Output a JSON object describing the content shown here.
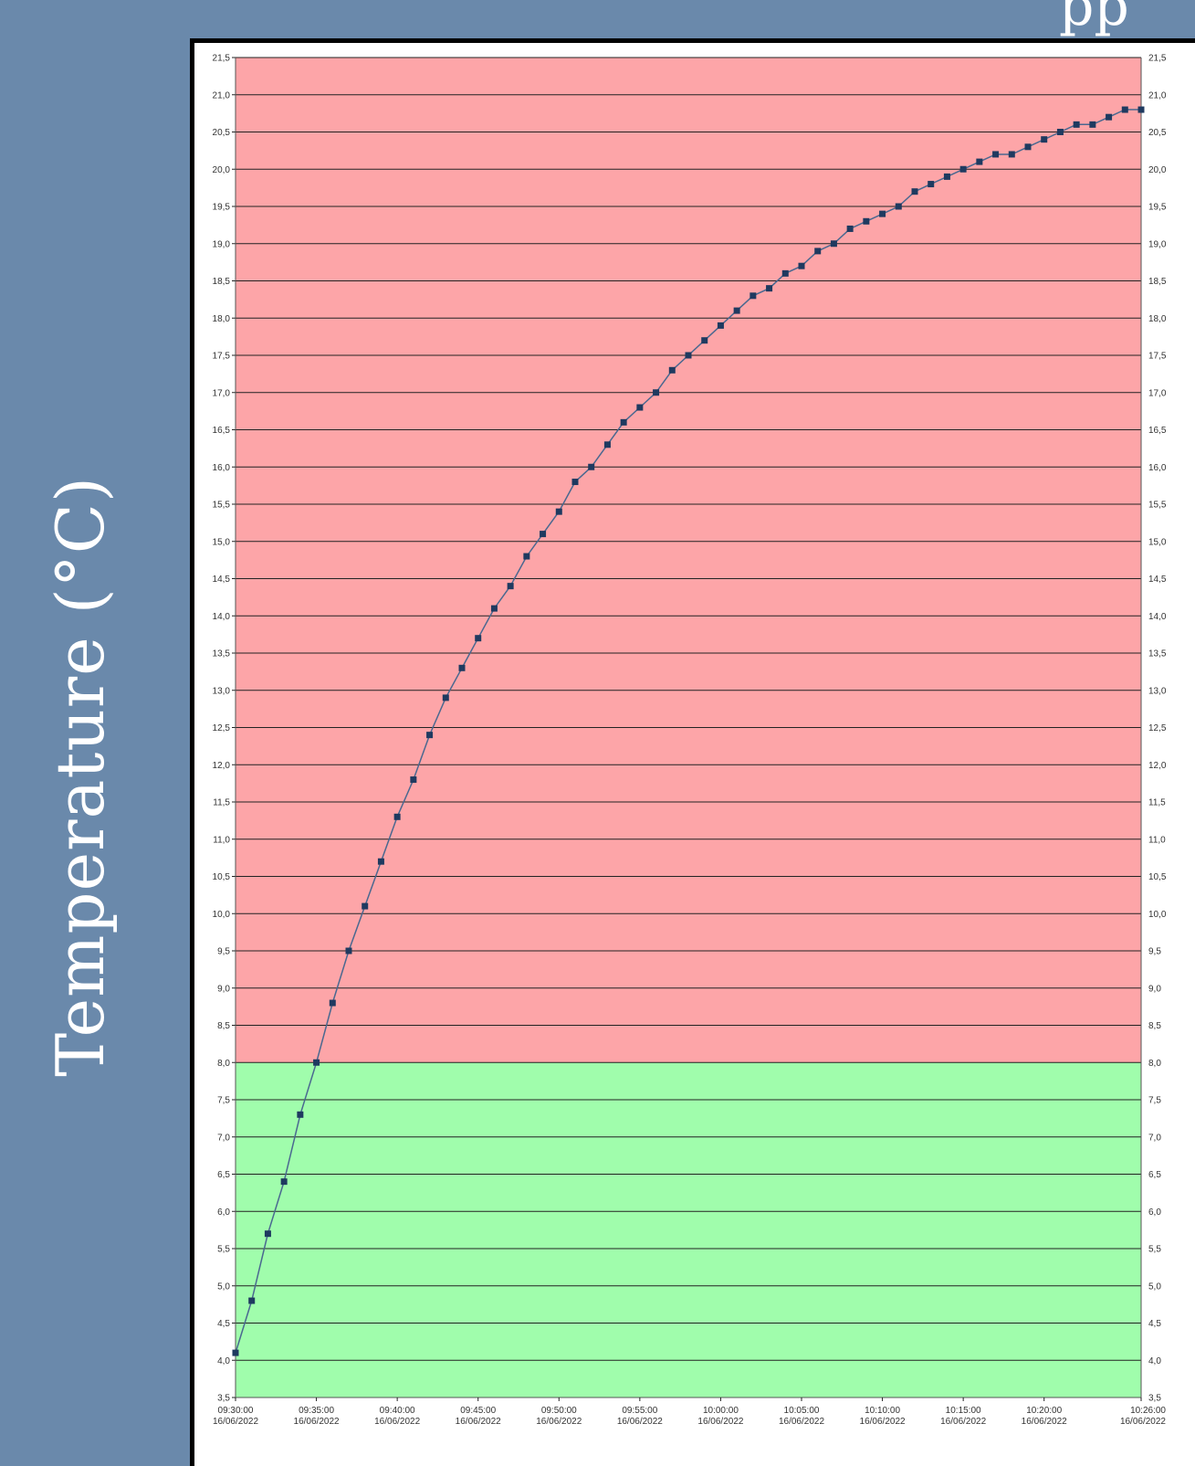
{
  "y_axis_caption": "Temperature (°C)",
  "corner_fragment": "pp",
  "colors": {
    "background": "#6a89ab",
    "band_above": "#fda5a8",
    "band_below": "#a0fdac",
    "series": "#4a6890",
    "marker": "#1f3a60",
    "grid": "#222222"
  },
  "chart_data": {
    "type": "line",
    "title": "",
    "xlabel": "",
    "ylabel": "Temperature (°C)",
    "ylim": [
      3.5,
      21.5
    ],
    "y_step": 0.5,
    "threshold": 8.0,
    "grid": true,
    "series": [
      {
        "x_start": "09:30:00",
        "x_step_minutes": 1,
        "values": [
          4.1,
          4.8,
          5.7,
          6.4,
          7.3,
          8.0,
          8.8,
          9.5,
          10.1,
          10.7,
          11.3,
          11.8,
          12.4,
          12.9,
          13.3,
          13.7,
          14.1,
          14.4,
          14.8,
          15.1,
          15.4,
          15.8,
          16.0,
          16.3,
          16.6,
          16.8,
          17.0,
          17.3,
          17.5,
          17.7,
          17.9,
          18.1,
          18.3,
          18.4,
          18.6,
          18.7,
          18.9,
          19.0,
          19.2,
          19.3,
          19.4,
          19.5,
          19.7,
          19.8,
          19.9,
          20.0,
          20.1,
          20.2,
          20.2,
          20.3,
          20.4,
          20.5,
          20.6,
          20.6,
          20.7,
          20.8,
          20.8
        ]
      }
    ],
    "x_ticks": [
      {
        "minute": 0,
        "time": "09:30:00",
        "date": "16/06/2022"
      },
      {
        "minute": 5,
        "time": "09:35:00",
        "date": "16/06/2022"
      },
      {
        "minute": 10,
        "time": "09:40:00",
        "date": "16/06/2022"
      },
      {
        "minute": 15,
        "time": "09:45:00",
        "date": "16/06/2022"
      },
      {
        "minute": 20,
        "time": "09:50:00",
        "date": "16/06/2022"
      },
      {
        "minute": 25,
        "time": "09:55:00",
        "date": "16/06/2022"
      },
      {
        "minute": 30,
        "time": "10:00:00",
        "date": "16/06/2022"
      },
      {
        "minute": 35,
        "time": "10:05:00",
        "date": "16/06/2022"
      },
      {
        "minute": 40,
        "time": "10:10:00",
        "date": "16/06/2022"
      },
      {
        "minute": 45,
        "time": "10:15:00",
        "date": "16/06/2022"
      },
      {
        "minute": 50,
        "time": "10:20:00",
        "date": "16/06/2022"
      },
      {
        "minute": 56,
        "time": "10:26:00",
        "date": "16/06/2022"
      }
    ]
  }
}
